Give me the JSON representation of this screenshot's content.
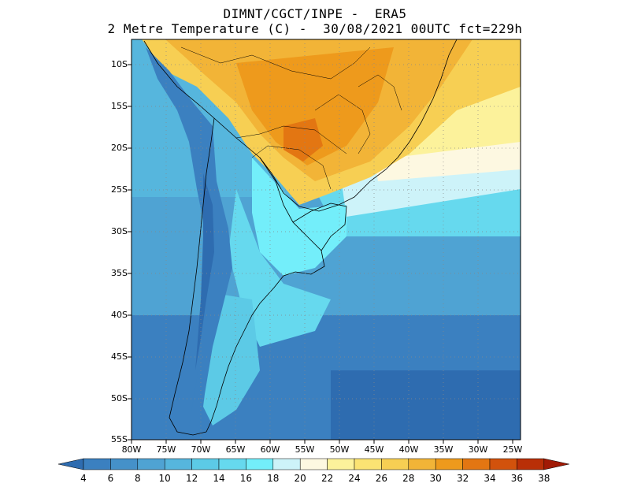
{
  "header": {
    "line1": "DIMNT/CGCT/INPE -  ERA5",
    "line2": "2 Metre Temperature (C) -  30/08/2021 00UTC fct=229h"
  },
  "axes": {
    "lat_labels": [
      "10S",
      "15S",
      "20S",
      "25S",
      "30S",
      "35S",
      "40S",
      "45S",
      "50S",
      "55S"
    ],
    "lon_labels": [
      "80W",
      "75W",
      "70W",
      "65W",
      "60W",
      "55W",
      "50W",
      "45W",
      "40W",
      "35W",
      "30W",
      "25W"
    ]
  },
  "colorbar": {
    "labels": [
      "4",
      "6",
      "8",
      "10",
      "12",
      "14",
      "16",
      "18",
      "20",
      "22",
      "24",
      "26",
      "28",
      "30",
      "32",
      "34",
      "36",
      "38"
    ],
    "colors": [
      "#2e6cb0",
      "#3b80c0",
      "#4591c9",
      "#4fa3d3",
      "#56b6dd",
      "#5ccae6",
      "#66d9ee",
      "#73eefa",
      "#cdf3f9",
      "#fdf8e1",
      "#fcf29b",
      "#fbe373",
      "#f7cf53",
      "#f2b437",
      "#ee9a1c",
      "#e37612",
      "#d2520c",
      "#b92f07",
      "#a11a05"
    ]
  }
}
